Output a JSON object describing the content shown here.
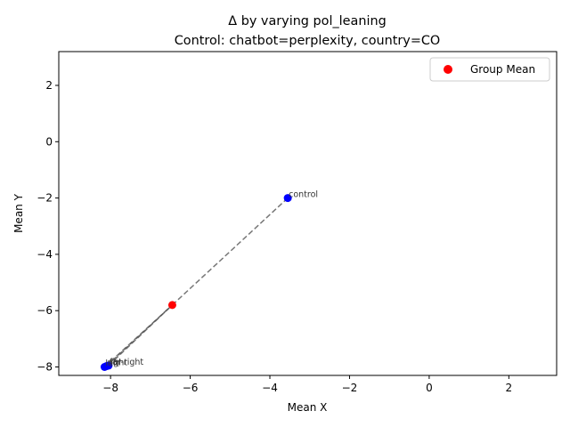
{
  "chart_data": {
    "type": "scatter",
    "title_line1": "Δ by varying pol_leaning",
    "title_line2": "Control: chatbot=perplexity, country=CO",
    "xlabel": "Mean X",
    "ylabel": "Mean Y",
    "xlim": [
      -9.3,
      3.2
    ],
    "ylim": [
      -8.3,
      3.2
    ],
    "xticks": [
      -8,
      -6,
      -4,
      -2,
      0,
      2
    ],
    "yticks": [
      -8,
      -6,
      -4,
      -2,
      0,
      2
    ],
    "xtick_labels": [
      "−8",
      "−6",
      "−4",
      "−2",
      "0",
      "2"
    ],
    "ytick_labels": [
      "−8",
      "−6",
      "−4",
      "−2",
      "0",
      "2"
    ],
    "points": [
      {
        "label": "control",
        "x": -3.55,
        "y": -2.0
      },
      {
        "label": "far-right",
        "x": -8.05,
        "y": -7.95
      },
      {
        "label": "left",
        "x": -8.15,
        "y": -8.0
      },
      {
        "label": "right",
        "x": -8.1,
        "y": -7.97
      }
    ],
    "group_mean": {
      "x": -6.45,
      "y": -5.8
    },
    "legend": {
      "label": "Group Mean",
      "placement": "upper right"
    },
    "colors": {
      "points": "#0000ff",
      "group_mean": "#ff0000",
      "lines": "#555555"
    }
  }
}
